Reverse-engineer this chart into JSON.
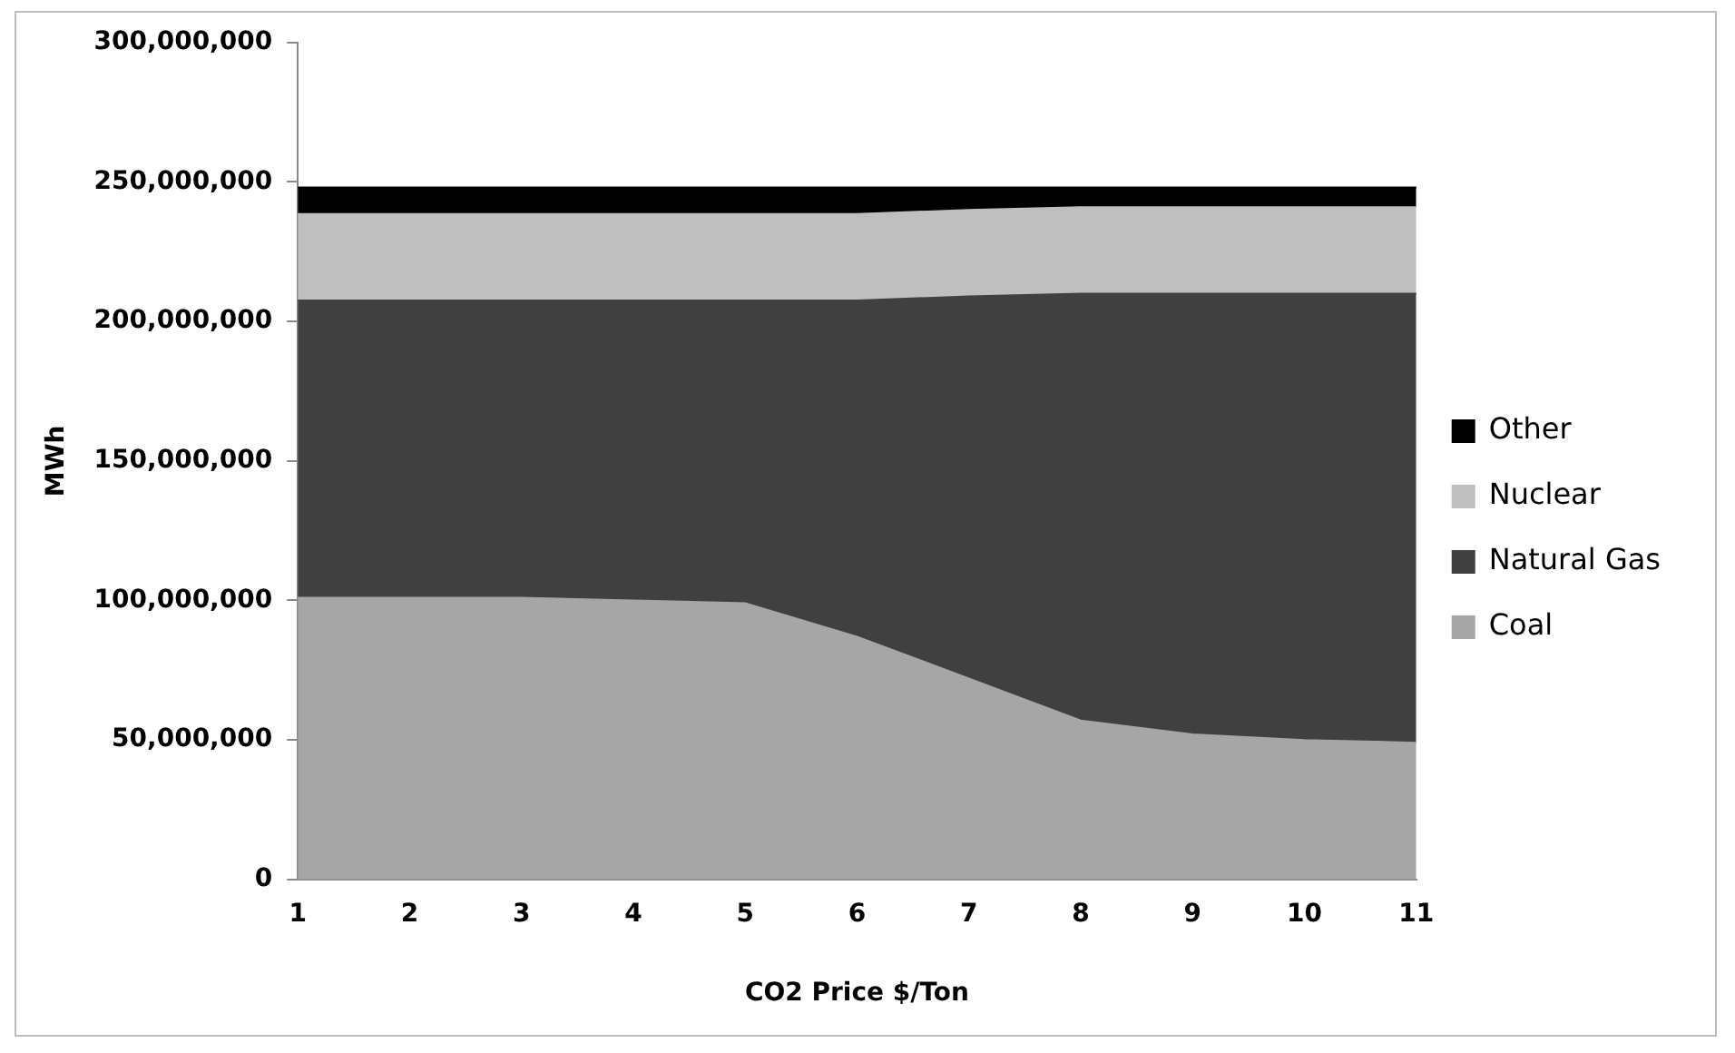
{
  "chart_data": {
    "type": "area",
    "stacked": true,
    "xlabel": "CO2 Price $/Ton",
    "ylabel": "MWh",
    "categories": [
      "1",
      "2",
      "3",
      "4",
      "5",
      "6",
      "7",
      "8",
      "9",
      "10",
      "11"
    ],
    "series": [
      {
        "name": "Coal",
        "color": "#a6a6a6",
        "values": [
          101000000,
          101000000,
          101000000,
          100000000,
          99000000,
          87000000,
          72000000,
          57000000,
          52000000,
          50000000,
          49000000
        ]
      },
      {
        "name": "Natural Gas",
        "color": "#404040",
        "values": [
          106500000,
          106500000,
          106500000,
          107500000,
          108500000,
          120500000,
          137000000,
          153000000,
          158000000,
          160000000,
          161000000
        ]
      },
      {
        "name": "Nuclear",
        "color": "#bfbfbf",
        "values": [
          31000000,
          31000000,
          31000000,
          31000000,
          31000000,
          31000000,
          31000000,
          31000000,
          31000000,
          31000000,
          31000000
        ]
      },
      {
        "name": "Other",
        "color": "#000000",
        "values": [
          9500000,
          9500000,
          9500000,
          9500000,
          9500000,
          9500000,
          8000000,
          7000000,
          7000000,
          7000000,
          7000000
        ]
      }
    ],
    "ylim": [
      0,
      300000000
    ],
    "yticks": [
      0,
      {
        "value": 50000000,
        "label": "50,000,000"
      },
      {
        "value": 100000000,
        "label": "100,000,000"
      },
      {
        "value": 150000000,
        "label": "150,000,000"
      },
      {
        "value": 200000000,
        "label": "200,000,000"
      },
      {
        "value": 250000000,
        "label": "250,000,000"
      },
      {
        "value": 300000000,
        "label": "300,000,000"
      }
    ],
    "grid": false,
    "legend": "right"
  }
}
